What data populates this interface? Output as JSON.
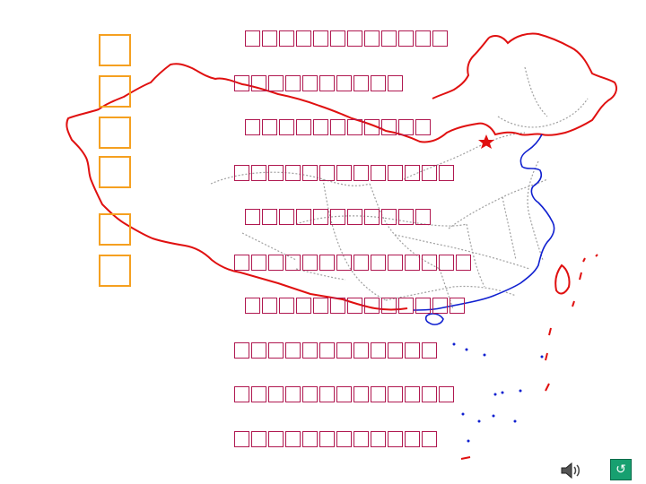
{
  "title_chars": [
    "",
    "",
    "",
    "",
    "",
    ""
  ],
  "lines": [
    {
      "text": "",
      "glyphs": 12
    },
    {
      "text": "",
      "glyphs": 10
    },
    {
      "text": "",
      "glyphs": 11
    },
    {
      "text": "",
      "glyphs": 13
    },
    {
      "text": "",
      "glyphs": 11
    },
    {
      "text": "",
      "glyphs": 14
    },
    {
      "text": "",
      "glyphs": 13
    },
    {
      "text": "",
      "glyphs": 12
    },
    {
      "text": "",
      "glyphs": 13
    },
    {
      "text": "",
      "glyphs": 12
    }
  ],
  "colors": {
    "border_red": "#e01010",
    "coast_blue": "#1020d0",
    "province_gray": "#a0a0a0",
    "text_magenta": "#b01850",
    "title_box_orange": "#f5a020",
    "capital_star": "#e01010",
    "nav_green": "#17a070"
  },
  "icons": {
    "capital": "star-icon",
    "sound": "speaker-icon",
    "nav": "return-arrow-icon"
  },
  "nav_button_label": "↺"
}
